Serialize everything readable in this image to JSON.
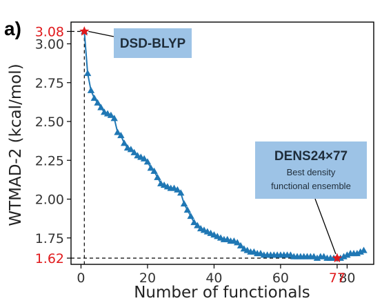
{
  "panel_label": "a)",
  "chart_data": {
    "type": "line",
    "title": "",
    "xlabel": "Number of functionals",
    "ylabel": "WTMAD-2 (kcal/mol)",
    "xlim": [
      -3,
      88
    ],
    "ylim": [
      1.58,
      3.14
    ],
    "xticks": [
      0,
      20,
      40,
      60,
      80
    ],
    "yticks": [
      1.75,
      2.0,
      2.25,
      2.5,
      2.75,
      3.0
    ],
    "ytick_labels": [
      "1.75",
      "2.00",
      "2.25",
      "2.50",
      "2.75",
      "3.00"
    ],
    "xtick_labels": [
      "0",
      "20",
      "40",
      "60",
      "80"
    ],
    "highlight_y_labels": [
      "3.08",
      "1.62"
    ],
    "highlight_y_values": [
      3.08,
      1.62
    ],
    "highlight_x_label": "77",
    "highlight_x_value": 77,
    "grid": false,
    "marker": "triangle",
    "color": "#1f77b4",
    "highlight_color": "#e0191c",
    "series": [
      {
        "x": [
          1,
          2,
          3,
          4,
          5,
          6,
          7,
          8,
          9,
          10,
          11,
          12,
          13,
          14,
          15,
          16,
          17,
          18,
          19,
          20,
          21,
          22,
          23,
          24,
          25,
          26,
          27,
          28,
          29,
          30,
          31,
          32,
          33,
          34,
          35,
          36,
          37,
          38,
          39,
          40,
          41,
          42,
          43,
          44,
          45,
          46,
          47,
          48,
          49,
          50,
          51,
          52,
          53,
          54,
          55,
          56,
          57,
          58,
          59,
          60,
          61,
          62,
          63,
          64,
          65,
          66,
          67,
          68,
          69,
          70,
          71,
          72,
          73,
          74,
          75,
          76,
          77,
          78,
          79,
          80,
          81,
          82,
          83,
          84,
          85
        ],
        "y": [
          3.08,
          2.81,
          2.7,
          2.65,
          2.62,
          2.59,
          2.56,
          2.55,
          2.54,
          2.52,
          2.43,
          2.41,
          2.36,
          2.33,
          2.32,
          2.3,
          2.28,
          2.27,
          2.26,
          2.24,
          2.2,
          2.18,
          2.14,
          2.1,
          2.09,
          2.08,
          2.07,
          2.07,
          2.06,
          2.04,
          1.97,
          1.93,
          1.89,
          1.85,
          1.83,
          1.81,
          1.8,
          1.79,
          1.78,
          1.77,
          1.76,
          1.75,
          1.74,
          1.74,
          1.73,
          1.73,
          1.72,
          1.7,
          1.68,
          1.67,
          1.66,
          1.66,
          1.65,
          1.65,
          1.64,
          1.64,
          1.64,
          1.64,
          1.64,
          1.64,
          1.64,
          1.64,
          1.64,
          1.63,
          1.63,
          1.63,
          1.63,
          1.63,
          1.63,
          1.63,
          1.62,
          1.63,
          1.63,
          1.62,
          1.62,
          1.62,
          1.62,
          1.62,
          1.63,
          1.64,
          1.65,
          1.65,
          1.65,
          1.66,
          1.67
        ]
      }
    ],
    "annotations": [
      {
        "title": "DSD-BLYP",
        "subtitle": [],
        "target_x": 1,
        "target_y": 3.08
      },
      {
        "title": "DENS24×77",
        "subtitle": [
          "Best density",
          "functional ensemble"
        ],
        "target_x": 77,
        "target_y": 1.62
      }
    ]
  }
}
